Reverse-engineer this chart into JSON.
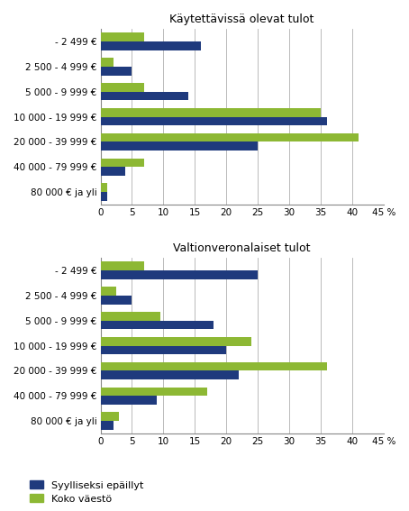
{
  "chart1_title": "Käytettävissä olevat tulot",
  "chart2_title": "Valtionveronalaiset tulot",
  "categories": [
    "- 2 499 €",
    "2 500 - 4 999 €",
    "5 000 - 9 999 €",
    "10 000 - 19 999 €",
    "20 000 - 39 999 €",
    "40 000 - 79 999 €",
    "80 000 € ja yli"
  ],
  "chart1_blue": [
    16,
    5,
    14,
    36,
    25,
    4,
    1
  ],
  "chart1_green": [
    7,
    2,
    7,
    35,
    41,
    7,
    1
  ],
  "chart2_blue": [
    25,
    5,
    18,
    20,
    22,
    9,
    2
  ],
  "chart2_green": [
    7,
    2.5,
    9.5,
    24,
    36,
    17,
    3
  ],
  "blue_color": "#1F3A7D",
  "green_color": "#8DB834",
  "xlim": [
    0,
    45
  ],
  "xticks": [
    0,
    5,
    10,
    15,
    20,
    25,
    30,
    35,
    40,
    45
  ],
  "legend_labels": [
    "Syylliseksi epäillyt",
    "Koko väestö"
  ],
  "background_color": "#ffffff",
  "grid_color": "#b0b0b0",
  "bar_height": 0.35,
  "title_fontsize": 9,
  "tick_fontsize": 7.5,
  "legend_fontsize": 8
}
